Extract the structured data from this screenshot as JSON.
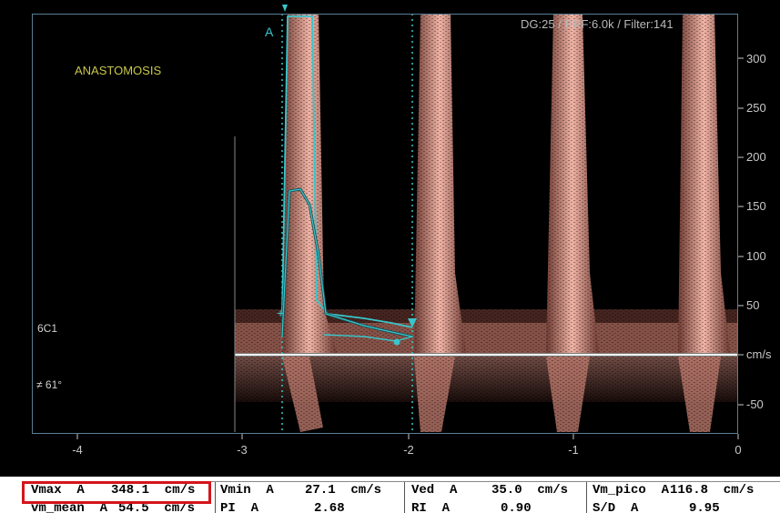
{
  "header": {
    "settings": "DG:25 /   PRF:6.0k   / Filter:141"
  },
  "labels": {
    "site": "ANASTOMOSIS",
    "cursor": "A",
    "probe": "6C1",
    "angle": "≠ 61°"
  },
  "axis_y": {
    "ticks": [
      "300",
      "250",
      "200",
      "150",
      "100",
      "50",
      "cm/s",
      "-50"
    ]
  },
  "axis_x": {
    "ticks": [
      "-4",
      "-3",
      "-2",
      "-1",
      "0"
    ]
  },
  "measurements": {
    "row1": [
      {
        "label": "Vmax  A",
        "value": "348.1  cm/s"
      },
      {
        "label": "Vmin  A",
        "value": "27.1  cm/s"
      },
      {
        "label": "Ved  A",
        "value": "35.0  cm/s"
      },
      {
        "label": "Vm_pico  A",
        "value": "116.8  cm/s"
      }
    ],
    "row2": [
      {
        "label": "vm_mean  A",
        "value": "54.5  cm/s"
      },
      {
        "label": "PI  A",
        "value": "2.68"
      },
      {
        "label": "RI  A",
        "value": "0.90"
      },
      {
        "label": "S/D  A",
        "value": "9.95"
      }
    ]
  },
  "colors": {
    "spectrum": "#e8a79a",
    "trace": "#38c6cc",
    "highlight": "#d4151b",
    "site_label": "#c8c84a"
  }
}
